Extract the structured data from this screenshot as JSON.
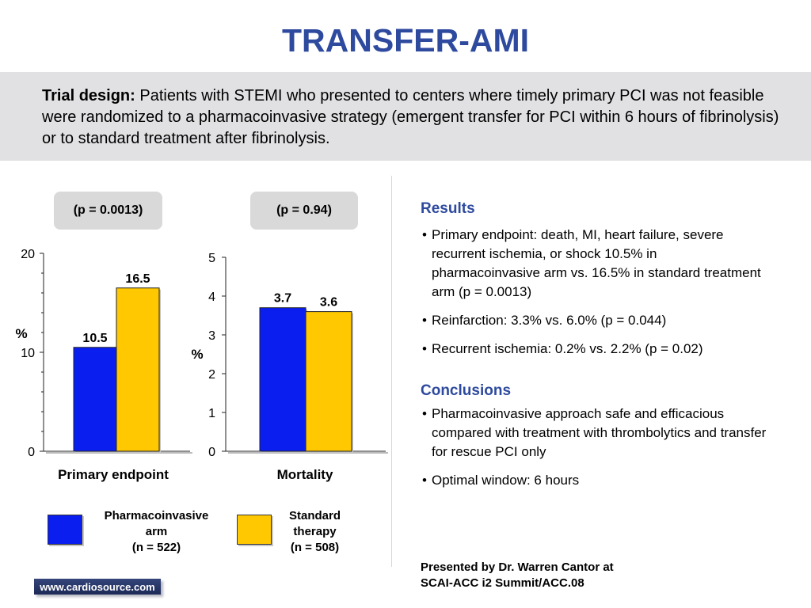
{
  "title": "TRANSFER-AMI",
  "design": {
    "label": "Trial design:",
    "text": " Patients with STEMI who presented to centers where timely primary PCI was not feasible were randomized to a pharmacoinvasive strategy (emergent transfer for PCI within 6 hours of fibrinolysis) or to standard treatment after fibrinolysis."
  },
  "colors": {
    "pharmacoinvasive": "#0a1ef0",
    "standard": "#ffc800",
    "accent": "#2e4a9e"
  },
  "legend": [
    {
      "label": "Pharmacoinvasive\narm\n(n = 522)",
      "color": "#0a1ef0"
    },
    {
      "label": "Standard\ntherapy\n(n = 508)",
      "color": "#ffc800"
    }
  ],
  "chart_data": [
    {
      "type": "bar",
      "categories": [
        "Primary endpoint"
      ],
      "series": [
        {
          "name": "Pharmacoinvasive arm",
          "values": [
            10.5
          ]
        },
        {
          "name": "Standard therapy",
          "values": [
            16.5
          ]
        }
      ],
      "data_labels": [
        "10.5",
        "16.5"
      ],
      "ylabel": "%",
      "ylim": [
        0,
        20
      ],
      "yticks": [
        0,
        10,
        20
      ],
      "annotation": "(p = 0.0013)"
    },
    {
      "type": "bar",
      "categories": [
        "Mortality"
      ],
      "series": [
        {
          "name": "Pharmacoinvasive arm",
          "values": [
            3.7
          ]
        },
        {
          "name": "Standard therapy",
          "values": [
            3.6
          ]
        }
      ],
      "data_labels": [
        "3.7",
        "3.6"
      ],
      "ylabel": "%",
      "ylim": [
        0,
        5
      ],
      "yticks": [
        0,
        1,
        2,
        3,
        4,
        5
      ],
      "annotation": "(p = 0.94)"
    }
  ],
  "results": {
    "heading": "Results",
    "items": [
      "Primary endpoint: death, MI, heart failure, severe recurrent ischemia, or shock 10.5% in pharmacoinvasive arm vs. 16.5% in standard treatment arm (p = 0.0013)",
      "Reinfarction: 3.3% vs. 6.0% (p = 0.044)",
      "Recurrent ischemia: 0.2% vs. 2.2% (p = 0.02)"
    ]
  },
  "conclusions": {
    "heading": "Conclusions",
    "items": [
      "Pharmacoinvasive approach safe and efficacious compared with treatment with thrombolytics and transfer for rescue PCI only",
      "Optimal window: 6 hours"
    ]
  },
  "presented_by": "Presented by Dr. Warren Cantor at\nSCAI-ACC i2 Summit/ACC.08",
  "logo_text": "www.cardiosource.com"
}
